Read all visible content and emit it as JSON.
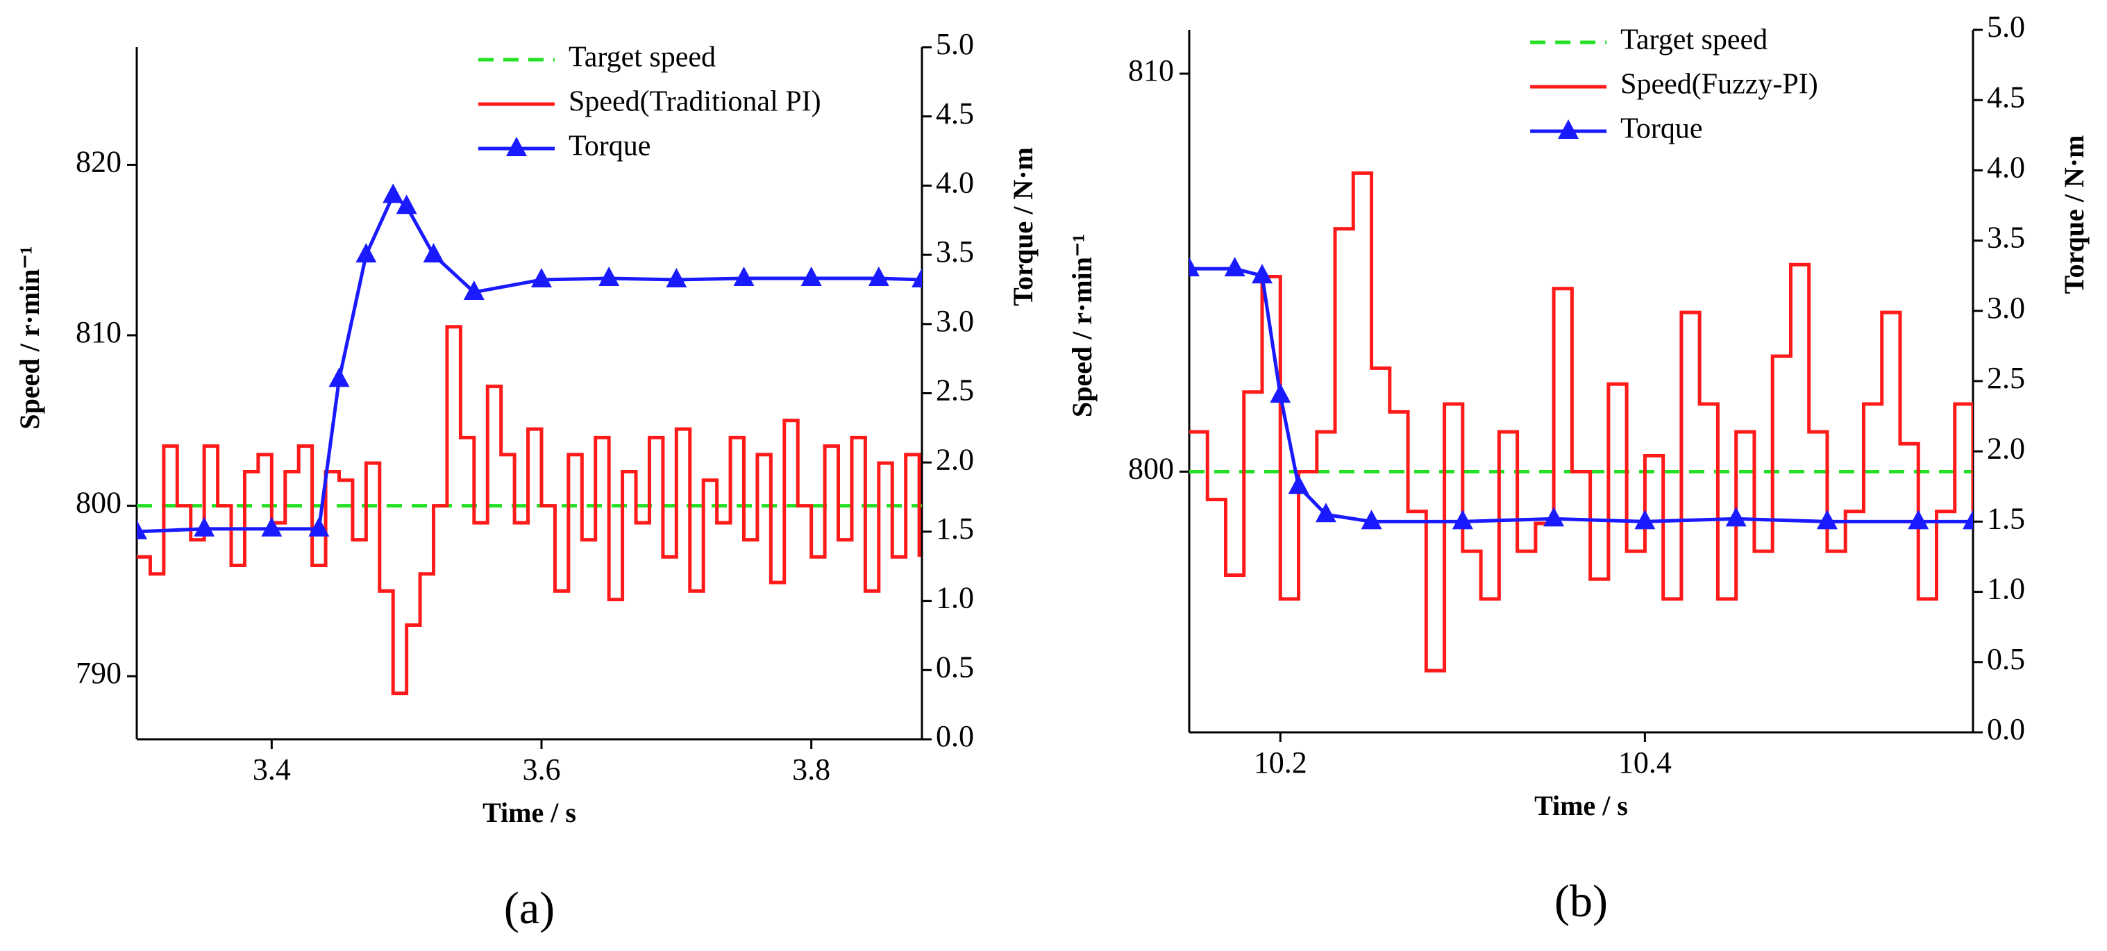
{
  "chart_data": [
    {
      "type": "line",
      "label": "(a)",
      "xlabel": "Time / s",
      "ylabel": "Speed / r·min⁻¹",
      "y2label": "Torque / N·m",
      "legend": "upper center",
      "xlim": [
        3.3,
        3.882
      ],
      "xticks": [
        3.4,
        3.6,
        3.8
      ],
      "ylim": [
        786.3,
        826.9
      ],
      "yticks": [
        790,
        800,
        810,
        820
      ],
      "y2lim": [
        0,
        5
      ],
      "y2ticks": [
        {
          "value": 0,
          "label": "0.0"
        },
        0.5,
        {
          "value": 1,
          "label": "1.0"
        },
        1.5,
        {
          "value": 2,
          "label": "2.0"
        },
        2.5,
        {
          "value": 3,
          "label": "3.0"
        },
        3.5,
        {
          "value": 4,
          "label": "4.0"
        },
        4.5,
        {
          "value": 5,
          "label": "5.0"
        }
      ],
      "series": [
        {
          "name": "Target speed",
          "color": "#22e022",
          "dashed": true,
          "x": [
            3.3,
            3.882
          ],
          "values": [
            800,
            800
          ]
        },
        {
          "name": "Speed(Traditional PI)",
          "color": "#ff1a1a",
          "step": true,
          "x": [
            3.3,
            3.31,
            3.32,
            3.33,
            3.34,
            3.35,
            3.36,
            3.37,
            3.38,
            3.39,
            3.4,
            3.41,
            3.42,
            3.43,
            3.44,
            3.45,
            3.46,
            3.47,
            3.48,
            3.49,
            3.5,
            3.51,
            3.52,
            3.53,
            3.54,
            3.55,
            3.56,
            3.57,
            3.58,
            3.59,
            3.6,
            3.61,
            3.62,
            3.63,
            3.64,
            3.65,
            3.66,
            3.67,
            3.68,
            3.69,
            3.7,
            3.71,
            3.72,
            3.73,
            3.74,
            3.75,
            3.76,
            3.77,
            3.78,
            3.79,
            3.8,
            3.81,
            3.82,
            3.83,
            3.84,
            3.85,
            3.86,
            3.87,
            3.88
          ],
          "values": [
            797,
            796,
            803.5,
            800,
            798,
            803.5,
            800,
            796.5,
            802,
            803,
            799,
            802,
            803.5,
            796.5,
            802,
            801.5,
            798,
            802.5,
            795,
            789,
            793,
            796,
            800,
            810.5,
            804,
            799,
            807,
            803,
            799,
            804.5,
            800,
            795,
            803,
            798,
            804,
            794.5,
            802,
            799,
            804,
            797,
            804.5,
            795,
            801.5,
            799,
            804,
            798,
            803,
            795.5,
            805,
            800,
            797,
            803.5,
            798,
            804,
            795,
            802.5,
            797,
            803,
            797
          ]
        },
        {
          "name": "Torque",
          "color": "#1a1aff",
          "axis": "y2",
          "marker": "triangle",
          "x": [
            3.3,
            3.35,
            3.4,
            3.435,
            3.45,
            3.47,
            3.49,
            3.5,
            3.52,
            3.55,
            3.6,
            3.65,
            3.7,
            3.75,
            3.8,
            3.85,
            3.882
          ],
          "values": [
            1.5,
            1.52,
            1.52,
            1.52,
            2.6,
            3.5,
            3.93,
            3.85,
            3.5,
            3.23,
            3.32,
            3.33,
            3.32,
            3.33,
            3.33,
            3.33,
            3.32
          ]
        }
      ]
    },
    {
      "type": "line",
      "label": "(b)",
      "xlabel": "Time / s",
      "ylabel": "Speed / r·min⁻¹",
      "y2label": "Torque / N·m",
      "legend": "upper center",
      "xlim": [
        10.15,
        10.58
      ],
      "xticks": [
        10.2,
        10.4
      ],
      "ylim": [
        793.45,
        811.1
      ],
      "yticks": [
        800,
        810
      ],
      "y2lim": [
        0,
        5
      ],
      "y2ticks": [
        {
          "value": 0,
          "label": "0.0"
        },
        0.5,
        {
          "value": 1,
          "label": "1.0"
        },
        1.5,
        {
          "value": 2,
          "label": "2.0"
        },
        2.5,
        {
          "value": 3,
          "label": "3.0"
        },
        3.5,
        {
          "value": 4,
          "label": "4.0"
        },
        4.5,
        {
          "value": 5,
          "label": "5.0"
        }
      ],
      "series": [
        {
          "name": "Target speed",
          "color": "#22e022",
          "dashed": true,
          "x": [
            10.15,
            10.58
          ],
          "values": [
            800,
            800
          ]
        },
        {
          "name": "Speed(Fuzzy-PI)",
          "color": "#ff1a1a",
          "step": true,
          "x": [
            10.15,
            10.16,
            10.17,
            10.18,
            10.19,
            10.2,
            10.21,
            10.22,
            10.23,
            10.24,
            10.25,
            10.26,
            10.27,
            10.28,
            10.29,
            10.3,
            10.31,
            10.32,
            10.33,
            10.34,
            10.35,
            10.36,
            10.37,
            10.38,
            10.39,
            10.4,
            10.41,
            10.42,
            10.43,
            10.44,
            10.45,
            10.46,
            10.47,
            10.48,
            10.49,
            10.5,
            10.51,
            10.52,
            10.53,
            10.54,
            10.55,
            10.56,
            10.57,
            10.58
          ],
          "values": [
            801,
            799.3,
            797.4,
            802,
            804.9,
            796.8,
            800,
            801,
            806.1,
            807.5,
            802.6,
            801.5,
            799,
            795,
            801.7,
            798,
            796.8,
            801,
            798,
            798.7,
            804.6,
            800,
            797.3,
            802.2,
            798,
            800.4,
            796.8,
            804,
            801.7,
            796.8,
            801,
            798,
            802.9,
            805.2,
            801,
            798,
            799,
            801.7,
            804,
            800.7,
            796.8,
            799,
            801.7,
            799
          ]
        },
        {
          "name": "Torque",
          "color": "#1a1aff",
          "axis": "y2",
          "marker": "triangle",
          "x": [
            10.15,
            10.175,
            10.19,
            10.2,
            10.21,
            10.225,
            10.25,
            10.3,
            10.35,
            10.4,
            10.45,
            10.5,
            10.55,
            10.58
          ],
          "values": [
            3.3,
            3.3,
            3.25,
            2.4,
            1.75,
            1.55,
            1.5,
            1.5,
            1.52,
            1.5,
            1.52,
            1.5,
            1.5,
            1.5
          ]
        }
      ]
    }
  ]
}
